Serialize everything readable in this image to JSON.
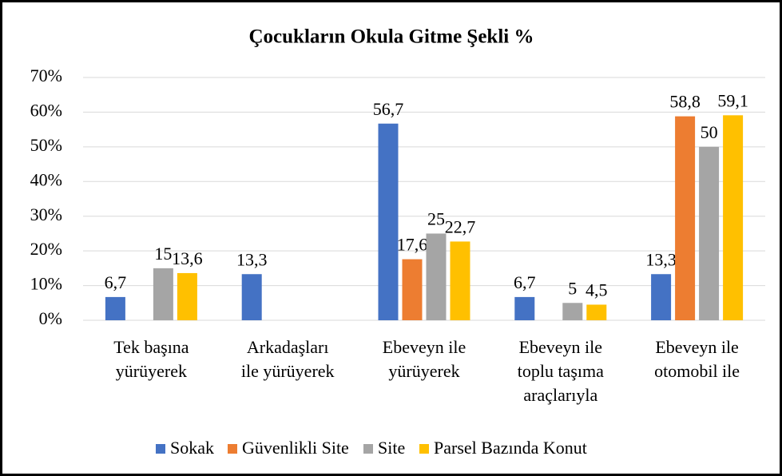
{
  "chart_data": {
    "type": "bar",
    "title": "Çocukların Okula Gitme Şekli %",
    "categories": [
      [
        "Tek başına",
        "yürüyerek"
      ],
      [
        "Arkadaşları",
        "ile yürüyerek"
      ],
      [
        "Ebeveyn ile",
        "yürüyerek"
      ],
      [
        "Ebeveyn ile",
        "toplu taşıma",
        "araçlarıyla"
      ],
      [
        "Ebeveyn ile",
        "otomobil ile"
      ]
    ],
    "series": [
      {
        "name": "Sokak",
        "color": "#4472c4",
        "values": [
          6.7,
          13.3,
          56.7,
          6.7,
          13.3
        ],
        "value_labels": [
          "6,7",
          "13,3",
          "56,7",
          "6,7",
          "13,3"
        ]
      },
      {
        "name": "Güvenlikli Site",
        "color": "#ed7d31",
        "values": [
          null,
          null,
          17.6,
          null,
          58.8
        ],
        "value_labels": [
          null,
          null,
          "17,6",
          null,
          "58,8"
        ]
      },
      {
        "name": "Site",
        "color": "#a5a5a5",
        "values": [
          15,
          null,
          25,
          5,
          50
        ],
        "value_labels": [
          "15",
          null,
          "25",
          "5",
          "50"
        ]
      },
      {
        "name": "Parsel Bazında Konut",
        "color": "#ffc000",
        "values": [
          13.6,
          null,
          22.7,
          4.5,
          59.1
        ],
        "value_labels": [
          "13,6",
          null,
          "22,7",
          "4,5",
          "59,1"
        ]
      }
    ],
    "ylim": [
      0,
      70
    ],
    "yticks": [
      {
        "value": 0,
        "label": "0%"
      },
      {
        "value": 10,
        "label": "10%"
      },
      {
        "value": 20,
        "label": "20%"
      },
      {
        "value": 30,
        "label": "30%"
      },
      {
        "value": 40,
        "label": "40%"
      },
      {
        "value": 50,
        "label": "50%"
      },
      {
        "value": 60,
        "label": "60%"
      },
      {
        "value": 70,
        "label": "70%"
      }
    ],
    "grid": true,
    "legend": "bottom"
  }
}
